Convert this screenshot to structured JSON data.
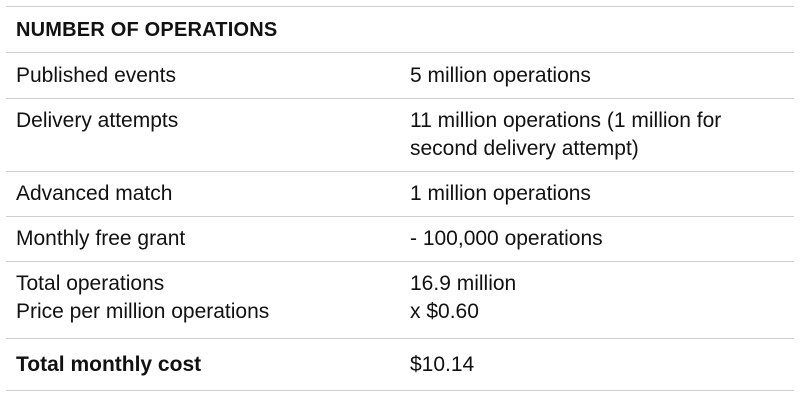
{
  "table": {
    "header": "NUMBER OF OPERATIONS",
    "rows": [
      {
        "label": "Published events",
        "value": "5 million operations"
      },
      {
        "label": "Delivery attempts",
        "value_line1": "11 million operations (1 million for",
        "value_line2": "second delivery attempt)"
      },
      {
        "label": "Advanced match",
        "value": "1 million operations"
      },
      {
        "label": "Monthly free grant",
        "value": "- 100,000 operations"
      },
      {
        "label_line1": "Total operations",
        "label_line2": "Price per million operations",
        "value_line1": "16.9 million",
        "value_line2": "x $0.60"
      },
      {
        "label": "Total monthly cost",
        "value": "$10.14"
      }
    ]
  }
}
